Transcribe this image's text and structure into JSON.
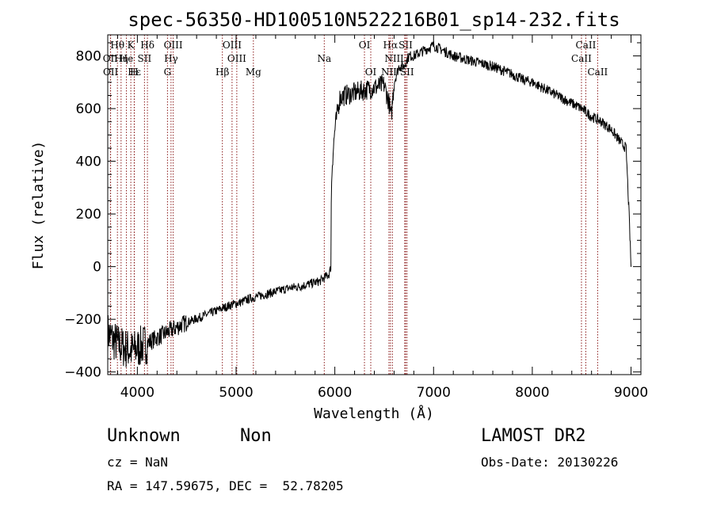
{
  "chart_data": {
    "type": "line",
    "title": "spec-56350-HD100510N522216B01_sp14-232.fits",
    "xlabel": "Wavelength (Å)",
    "ylabel": "Flux (relative)",
    "xlim": [
      3700,
      9100
    ],
    "ylim": [
      -410,
      880
    ],
    "xticks": [
      4000,
      5000,
      6000,
      7000,
      8000,
      9000
    ],
    "yticks": [
      -400,
      -200,
      0,
      200,
      400,
      600,
      800
    ],
    "grid": false,
    "legend": "none",
    "line_color": "#000000",
    "marker_color": "#8b1a1a",
    "series_anchors": {
      "x": [
        3700,
        3760,
        3820,
        3880,
        3950,
        4050,
        4150,
        4250,
        4350,
        4450,
        4550,
        4650,
        4750,
        4850,
        4950,
        5050,
        5150,
        5250,
        5350,
        5450,
        5550,
        5650,
        5750,
        5850,
        5900,
        5940,
        5960,
        5965,
        5975,
        6000,
        6050,
        6100,
        6200,
        6300,
        6400,
        6500,
        6550,
        6570,
        6600,
        6650,
        6700,
        6750,
        6800,
        6850,
        6900,
        6950,
        7000,
        7050,
        7100,
        7200,
        7300,
        7400,
        7500,
        7600,
        7700,
        7800,
        7900,
        8000,
        8100,
        8200,
        8300,
        8400,
        8500,
        8600,
        8700,
        8800,
        8900,
        8950,
        8980,
        9000
      ],
      "y": [
        -250,
        -280,
        -300,
        -310,
        -320,
        -300,
        -280,
        -260,
        -240,
        -220,
        -205,
        -190,
        -175,
        -160,
        -145,
        -135,
        -120,
        -110,
        -100,
        -90,
        -80,
        -75,
        -65,
        -55,
        -40,
        -30,
        0,
        300,
        400,
        520,
        640,
        650,
        660,
        670,
        680,
        690,
        620,
        560,
        700,
        760,
        760,
        800,
        800,
        810,
        820,
        830,
        840,
        830,
        820,
        800,
        790,
        780,
        770,
        760,
        745,
        730,
        710,
        700,
        680,
        660,
        640,
        620,
        600,
        570,
        550,
        520,
        470,
        450,
        200,
        0
      ]
    },
    "series_noise": {
      "seed": 7,
      "samples": 1400
    },
    "spectral_lines": [
      {
        "label": "Hθ",
        "x": 3798,
        "row": 0
      },
      {
        "label": "K",
        "x": 3934,
        "row": 0
      },
      {
        "label": "Hδ",
        "x": 4102,
        "row": 0
      },
      {
        "label": "OIII",
        "x": 4363,
        "row": 0
      },
      {
        "label": "OIII",
        "x": 4959,
        "row": 0
      },
      {
        "label": "OI",
        "x": 6300,
        "row": 0
      },
      {
        "label": "Hα",
        "x": 6563,
        "row": 0
      },
      {
        "label": "SII",
        "x": 6717,
        "row": 0
      },
      {
        "label": "CaII",
        "x": 8542,
        "row": 0
      },
      {
        "label": "OII",
        "x": 3727,
        "row": 1
      },
      {
        "label": "Hη",
        "x": 3835,
        "row": 1
      },
      {
        "label": "He",
        "x": 3889,
        "row": 1
      },
      {
        "label": "SII",
        "x": 4072,
        "row": 1
      },
      {
        "label": "Hγ",
        "x": 4341,
        "row": 1
      },
      {
        "label": "OIII",
        "x": 5007,
        "row": 1
      },
      {
        "label": "Na",
        "x": 5893,
        "row": 1
      },
      {
        "label": "NII",
        "x": 6583,
        "row": 1
      },
      {
        "label": "Li",
        "x": 6708,
        "row": 1
      },
      {
        "label": "CaII",
        "x": 8498,
        "row": 1
      },
      {
        "label": "OII",
        "x": 3729,
        "row": 2
      },
      {
        "label": "Hε",
        "x": 3970,
        "row": 2
      },
      {
        "label": "H",
        "x": 3968,
        "row": 2
      },
      {
        "label": "G",
        "x": 4305,
        "row": 2
      },
      {
        "label": "Hβ",
        "x": 4861,
        "row": 2
      },
      {
        "label": "Mg",
        "x": 5175,
        "row": 2
      },
      {
        "label": "OI",
        "x": 6364,
        "row": 2
      },
      {
        "label": "NII",
        "x": 6548,
        "row": 2
      },
      {
        "label": "SII",
        "x": 6731,
        "row": 2
      },
      {
        "label": "CaII",
        "x": 8662,
        "row": 2
      }
    ]
  },
  "footer": {
    "object_type": "Unknown",
    "subclass": "Non",
    "survey": "LAMOST DR2",
    "cz": "cz = NaN",
    "obs_date": "Obs-Date: 20130226",
    "coords": "RA = 147.59675, DEC =  52.78205"
  }
}
